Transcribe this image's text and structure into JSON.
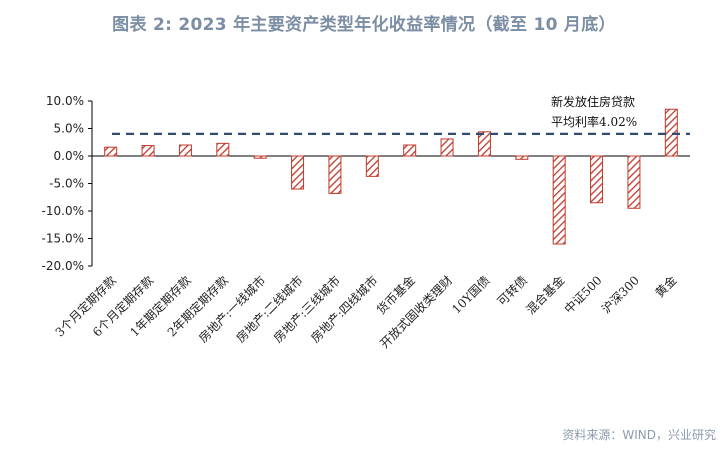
{
  "title": "图表 2:  2023 年主要资产类型年化收益率情况（截至 10 月底）",
  "source": "资料来源：WIND，兴业研究",
  "chart_data": {
    "type": "bar",
    "categories": [
      "3个月定期存款",
      "6个月定期存款",
      "1年期定期存款",
      "2年期定期存款",
      "房地产:一线城市",
      "房地产:二线城市",
      "房地产:三线城市",
      "房地产:四线城市",
      "货币基金",
      "开放式固收类理财",
      "10Y国债",
      "可转债",
      "混合基金",
      "中证500",
      "沪深300",
      "黄金"
    ],
    "values": [
      1.6,
      1.9,
      2.0,
      2.3,
      -0.4,
      -6.0,
      -6.8,
      -3.7,
      2.0,
      3.1,
      4.4,
      -0.6,
      -16.0,
      -8.5,
      -9.5,
      8.5
    ],
    "ylim": [
      -20,
      10
    ],
    "yticks": [
      10,
      5,
      0,
      -5,
      -10,
      -15,
      -20
    ],
    "ytick_labels": [
      "10.0%",
      "5.0%",
      "0.0%",
      "-5.0%",
      "-10.0%",
      "-15.0%",
      "-20.0%"
    ],
    "reference_line": {
      "value": 4.02,
      "label_line1": "新发放住房贷款",
      "label_line2": "平均利率4.02%",
      "color": "#2f4a73",
      "style": "dashed"
    },
    "bar_color": "#c0392b",
    "bar_pattern": "diagonal-hatch",
    "grid": false
  }
}
